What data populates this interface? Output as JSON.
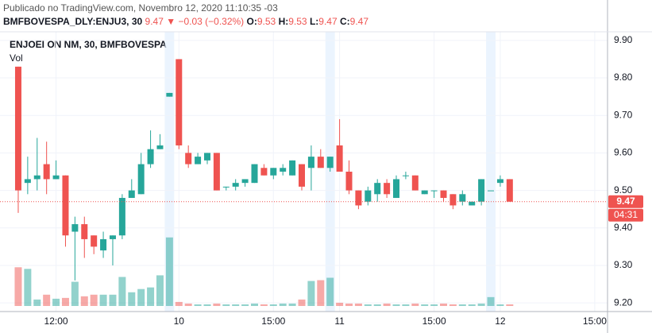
{
  "header": {
    "published": "Publicado no TradingView.com, Novembro 12, 2020 11:10:35 -03",
    "symbol": "BMFBOVESPA_DLY:ENJU3, 30",
    "last": 9.47,
    "arrow": "▼",
    "change": "−0.03 (−0.32%)",
    "ohlc": [
      {
        "label": "O:",
        "value": 9.53
      },
      {
        "label": "H:",
        "value": 9.53
      },
      {
        "label": "L:",
        "value": 9.47
      },
      {
        "label": "C:",
        "value": 9.47
      }
    ]
  },
  "chart_data": {
    "type": "candlestick",
    "legend": "ENJOEI ON NM, 30, BMFBOVESPA",
    "volume_label": "Vol",
    "up_color": "#26a69a",
    "down_color": "#ef5350",
    "categories": [
      null,
      null,
      null,
      null,
      null,
      null,
      null,
      null,
      null,
      null,
      null,
      null,
      null,
      null,
      null,
      null,
      null,
      null,
      null,
      null,
      null,
      null,
      null,
      null,
      null,
      null,
      null,
      null,
      null,
      null,
      null,
      null,
      null,
      null,
      null,
      null,
      null,
      null,
      null,
      null,
      null,
      null,
      null,
      null,
      null,
      null,
      null,
      null,
      null,
      null,
      null,
      null,
      null
    ],
    "open": [
      9.83,
      9.52,
      9.53,
      9.57,
      9.53,
      9.54,
      9.39,
      9.41,
      9.38,
      9.34,
      9.37,
      9.38,
      9.48,
      9.49,
      9.57,
      9.61,
      9.75,
      9.85,
      9.6,
      9.57,
      9.58,
      9.6,
      9.51,
      9.51,
      9.52,
      9.52,
      9.56,
      9.54,
      9.55,
      9.54,
      9.57,
      9.56,
      9.59,
      9.56,
      9.62,
      9.55,
      9.5,
      9.47,
      9.49,
      9.52,
      9.48,
      9.54,
      9.54,
      9.49,
      9.5,
      9.5,
      9.49,
      9.47,
      9.46,
      9.47,
      9.5,
      9.52,
      9.53
    ],
    "high": [
      9.83,
      9.59,
      9.64,
      9.63,
      9.58,
      9.54,
      9.43,
      9.43,
      9.38,
      9.39,
      9.38,
      9.49,
      9.53,
      9.6,
      9.66,
      9.65,
      9.76,
      9.85,
      9.62,
      9.6,
      9.6,
      9.6,
      9.51,
      9.53,
      9.53,
      9.57,
      9.57,
      9.56,
      9.57,
      9.58,
      9.57,
      9.62,
      9.61,
      9.59,
      9.69,
      9.58,
      9.5,
      9.51,
      9.53,
      9.53,
      9.54,
      9.55,
      9.54,
      9.5,
      9.5,
      9.5,
      9.49,
      9.5,
      9.47,
      9.53,
      9.5,
      9.54,
      9.53
    ],
    "low": [
      9.44,
      9.49,
      9.5,
      9.49,
      9.53,
      9.35,
      9.26,
      9.32,
      9.33,
      9.32,
      9.3,
      9.37,
      9.48,
      9.49,
      9.56,
      9.61,
      9.75,
      9.61,
      9.56,
      9.57,
      9.57,
      9.5,
      9.5,
      9.5,
      9.51,
      9.52,
      9.54,
      9.53,
      9.54,
      9.54,
      9.5,
      9.5,
      9.56,
      9.55,
      9.55,
      9.49,
      9.45,
      9.46,
      9.47,
      9.48,
      9.48,
      9.53,
      9.5,
      9.49,
      9.48,
      9.47,
      9.45,
      9.46,
      9.46,
      9.46,
      9.5,
      9.51,
      9.47
    ],
    "close": [
      9.5,
      9.53,
      9.54,
      9.53,
      9.54,
      9.38,
      9.41,
      9.37,
      9.35,
      9.37,
      9.38,
      9.48,
      9.5,
      9.57,
      9.61,
      9.62,
      9.76,
      9.62,
      9.57,
      9.59,
      9.6,
      9.5,
      9.51,
      9.52,
      9.53,
      9.57,
      9.54,
      9.56,
      9.56,
      9.58,
      9.51,
      9.59,
      9.56,
      9.59,
      9.55,
      9.5,
      9.46,
      9.5,
      9.52,
      9.49,
      9.53,
      9.54,
      9.5,
      9.5,
      9.5,
      9.48,
      9.46,
      9.49,
      9.47,
      9.53,
      9.5,
      9.53,
      9.47
    ],
    "volume": [
      48,
      46,
      8,
      14,
      9,
      10,
      30,
      12,
      14,
      14,
      14,
      36,
      17,
      21,
      23,
      38,
      85,
      5,
      3,
      2,
      2,
      3,
      2,
      2,
      2,
      3,
      2,
      2,
      3,
      3,
      8,
      31,
      32,
      35,
      4,
      3,
      3,
      2,
      2,
      3,
      2,
      2,
      3,
      2,
      2,
      3,
      2,
      2,
      2,
      3,
      11,
      2,
      2
    ],
    "volume_ylim": [
      0,
      340
    ],
    "highlight_bars": [
      16,
      33,
      50
    ],
    "xlim": [
      -1.93,
      62.35
    ],
    "xticks": [
      {
        "value": 4,
        "label": "12:00"
      },
      {
        "value": 17,
        "label": "10"
      },
      {
        "value": 27,
        "label": "15:00"
      },
      {
        "value": 34,
        "label": "11"
      },
      {
        "value": 44,
        "label": "15:00"
      },
      {
        "value": 51,
        "label": "12"
      },
      {
        "value": 61,
        "label": "15:00"
      }
    ],
    "ylim": [
      9.177,
      9.923
    ],
    "yticks": [
      {
        "value": 9.2,
        "label": "9.20"
      },
      {
        "value": 9.3,
        "label": "9.30"
      },
      {
        "value": 9.4,
        "label": "9.40"
      },
      {
        "value": 9.5,
        "label": "9.50"
      },
      {
        "value": 9.6,
        "label": "9.60"
      },
      {
        "value": 9.7,
        "label": "9.70"
      },
      {
        "value": 9.8,
        "label": "9.80"
      },
      {
        "value": 9.9,
        "label": "9.90"
      }
    ],
    "last_price": {
      "value": 9.47,
      "label": "9.47"
    },
    "countdown": "04:31",
    "grid": true
  }
}
